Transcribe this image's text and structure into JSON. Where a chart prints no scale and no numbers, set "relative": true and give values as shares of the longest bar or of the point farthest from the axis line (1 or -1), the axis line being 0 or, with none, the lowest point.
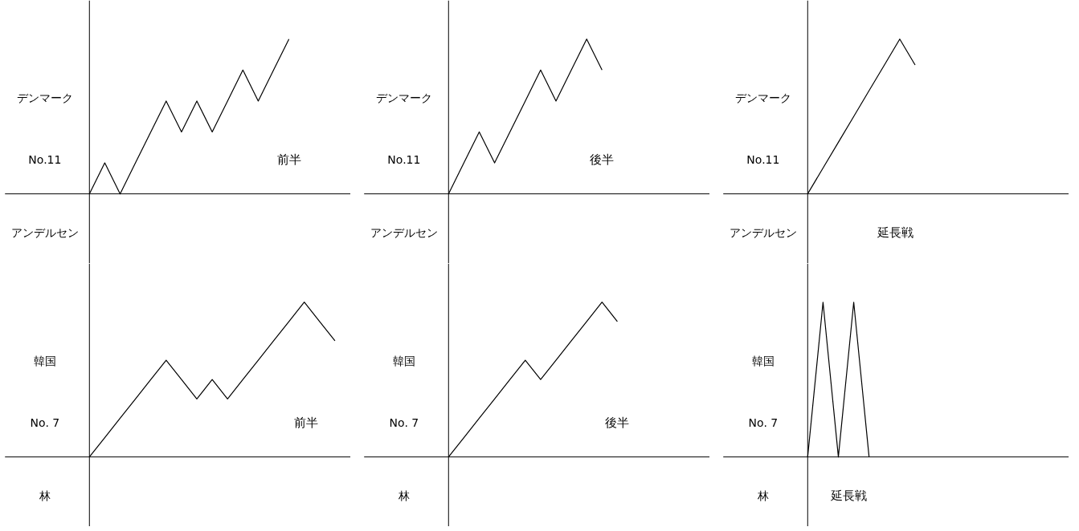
{
  "chart_data": [
    {
      "type": "line",
      "relative": true,
      "color": "#000000",
      "title": "前半",
      "annotations": [
        "デンマーク",
        "No.11",
        "アンデルセン"
      ],
      "categories": [
        null,
        null,
        null,
        null,
        null,
        null,
        null,
        null,
        null,
        null,
        null,
        null,
        null,
        null
      ],
      "values": [
        0,
        0.2,
        0,
        0.2,
        0.4,
        0.6,
        0.4,
        0.6,
        0.4,
        0.6,
        0.8,
        0.6,
        0.8,
        1
      ]
    },
    {
      "type": "line",
      "relative": true,
      "color": "#000000",
      "title": "後半",
      "annotations": [
        "デンマーク",
        "No.11",
        "アンデルセン"
      ],
      "categories": [
        null,
        null,
        null,
        null,
        null,
        null,
        null,
        null,
        null,
        null,
        null
      ],
      "values": [
        0,
        0.2,
        0.4,
        0.2,
        0.4,
        0.6,
        0.8,
        0.6,
        0.8,
        1,
        0.8
      ]
    },
    {
      "type": "line",
      "relative": true,
      "color": "#000000",
      "title": "延長戦",
      "annotations": [
        "デンマーク",
        "No.11",
        "アンデルセン"
      ],
      "categories": [
        null,
        null,
        null,
        null,
        null,
        null,
        null,
        null
      ],
      "values": [
        0,
        0.167,
        0.333,
        0.5,
        0.667,
        0.833,
        1,
        0.833
      ]
    },
    {
      "type": "line",
      "relative": true,
      "color": "#000000",
      "title": "前半",
      "annotations": [
        "韓国",
        "No. 7",
        "林"
      ],
      "categories": [
        null,
        null,
        null,
        null,
        null,
        null,
        null,
        null,
        null,
        null,
        null,
        null,
        null,
        null,
        null,
        null,
        null
      ],
      "values": [
        0,
        0.125,
        0.25,
        0.375,
        0.5,
        0.625,
        0.5,
        0.375,
        0.5,
        0.375,
        0.5,
        0.625,
        0.75,
        0.875,
        1,
        0.875,
        0.75
      ]
    },
    {
      "type": "line",
      "relative": true,
      "color": "#000000",
      "title": "後半",
      "annotations": [
        "韓国",
        "No. 7",
        "林"
      ],
      "categories": [
        null,
        null,
        null,
        null,
        null,
        null,
        null,
        null,
        null,
        null,
        null,
        null
      ],
      "values": [
        0,
        0.125,
        0.25,
        0.375,
        0.5,
        0.625,
        0.5,
        0.625,
        0.75,
        0.875,
        1,
        0.875
      ]
    },
    {
      "type": "line",
      "relative": true,
      "color": "#000000",
      "title": "延長戦",
      "annotations": [
        "韓国",
        "No. 7",
        "林"
      ],
      "categories": [
        null,
        null,
        null,
        null,
        null
      ],
      "values": [
        0,
        1,
        0,
        1,
        0
      ]
    }
  ]
}
